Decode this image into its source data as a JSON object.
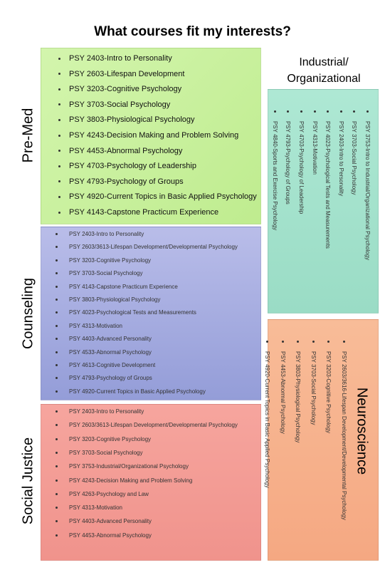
{
  "title": "What courses fit my interests?",
  "sections": [
    {
      "label": "Pre-Med",
      "items": [
        "PSY 2403-Intro to Personality",
        "PSY 2603-Lifespan Development",
        "PSY 3203-Cognitive Psychology",
        "PSY 3703-Social Psychology",
        "PSY 3803-Physiological Psychology",
        "PSY 4243-Decision Making and Problem Solving",
        "PSY 4453-Abnormal Psychology",
        "PSY 4703-Psychology of Leadership",
        "PSY 4793-Psychology of Groups",
        "PSY 4920-Current Topics in Basic Applied Psychology",
        "PSY 4143-Capstone Practicum Experience"
      ]
    },
    {
      "label": "Counseling",
      "items": [
        "PSY 2403-Intro to Personality",
        "PSY 2603/3613-Lifespan Development/Developmental Psychology",
        "PSY 3203-Cognitive Psychology",
        "PSY 3703-Social Psychology",
        "PSY 4143-Capstone Practicum Experience",
        "PSY 3803-Physiological Psychology",
        "PSY 4023-Psychological Tests and Measurements",
        "PSY 4313-Motivation",
        "PSY 4403-Advanced Personality",
        "PSY 4533-Abnormal Psychology",
        "PSY 4613-Cognitive Development",
        "PSY 4793-Psychology of Groups",
        "PSY 4920-Current Topics in Basic Applied Psychology"
      ]
    },
    {
      "label": "Social Justice",
      "items": [
        "PSY 2403-Intro to Personality",
        "PSY 2603/3613-Lifespan Development/Developmental Psychology",
        "PSY 3203-Cognitive Psychology",
        "PSY 3703-Social Psychology",
        "PSY 3753-Industrial/Organizational Psychology",
        "PSY 4243-Decision Making and Problem Solving",
        "PSY 4263-Psychology and Law",
        "PSY 4313-Motivation",
        "PSY 4403-Advanced Personality",
        "PSY 4453-Abnormal Psychology"
      ]
    },
    {
      "label": "Industrial/ Organizational",
      "items": [
        "PSY 3753-Intro to Industrial/Organizational Psychology",
        "PSY 3703-Social Psychology",
        "PSY 2403-Intro to Personality",
        "PSY 4023-Psychological Tests and Measurements",
        "PSY 4313-Motivation",
        "PSY 4703-Psychology of Leadership",
        "PSY 4793-Psychology of Groups",
        "PSY 4840-Sports and Exercise Psychology"
      ]
    },
    {
      "label": "Neuroscience",
      "items": [
        "PSY 2603/3616-Lifespan Development/Developmental Psychology",
        "PSY 3203-Cognitive Psychology",
        "PSY 3703-Social Psychology",
        "PSY 3803-Physiological Psychology",
        "PSY 4453-Abnormal Psychology",
        "PSY 4920-Current Topics in Basic Applied Psychology"
      ]
    }
  ]
}
